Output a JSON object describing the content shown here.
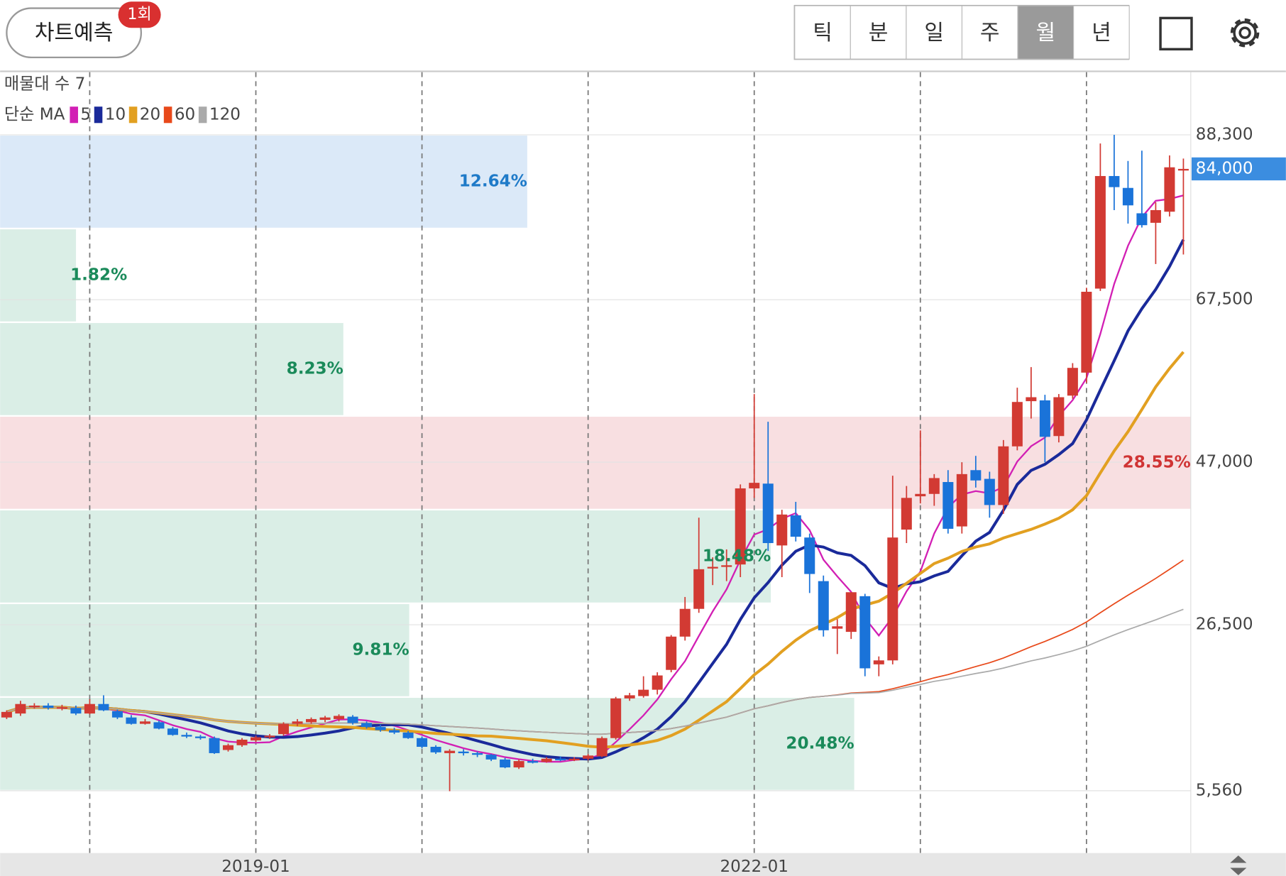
{
  "header": {
    "predict_button": "차트예측",
    "badge": "1회",
    "tabs": [
      "틱",
      "분",
      "일",
      "주",
      "월",
      "년"
    ],
    "active_tab": 4
  },
  "chart_data": {
    "type": "candlestick",
    "volume_profile_label": "매물대 수 7",
    "ma_label": "단순 MA",
    "ma": [
      {
        "period": 5,
        "color": "#d21fb4"
      },
      {
        "period": 10,
        "color": "#1a2a9a"
      },
      {
        "period": 20,
        "color": "#e2a021"
      },
      {
        "period": 60,
        "color": "#e8491a"
      },
      {
        "period": 120,
        "color": "#aaaaaa"
      }
    ],
    "categories": [
      null,
      null,
      null,
      null,
      null,
      null,
      null,
      null,
      null,
      null,
      null,
      null,
      null,
      null,
      null,
      null,
      null,
      null,
      "2019-01",
      null,
      null,
      null,
      null,
      null,
      null,
      null,
      null,
      null,
      null,
      null,
      null,
      null,
      null,
      null,
      null,
      null,
      null,
      null,
      null,
      null,
      null,
      null,
      null,
      null,
      null,
      null,
      null,
      null,
      null,
      null,
      null,
      null,
      null,
      null,
      "2022-01",
      null,
      null,
      null,
      null,
      null,
      null,
      null,
      null,
      null,
      null,
      null,
      null,
      null,
      null,
      null,
      null,
      null,
      null,
      null,
      null,
      null,
      null,
      null,
      null,
      null,
      null,
      null,
      null,
      null,
      null,
      null
    ],
    "open": [
      14800,
      15300,
      16200,
      16300,
      16000,
      16000,
      15300,
      16500,
      15600,
      14800,
      14000,
      14200,
      13400,
      12600,
      12400,
      12200,
      10700,
      11300,
      11900,
      12300,
      12700,
      14000,
      14200,
      14500,
      14600,
      14900,
      14100,
      13600,
      13200,
      12900,
      12200,
      11100,
      10300,
      10500,
      10300,
      10100,
      9500,
      8500,
      9300,
      9200,
      9600,
      9500,
      9600,
      9900,
      12200,
      17200,
      17500,
      18300,
      20800,
      25000,
      28500,
      33600,
      33800,
      34100,
      43700,
      44300,
      36500,
      40300,
      37500,
      32000,
      26000,
      25600,
      30100,
      21500,
      22000,
      38500,
      42700,
      43000,
      44500,
      38900,
      46000,
      44900,
      41600,
      49000,
      54700,
      54800,
      50300,
      55400,
      58300,
      68900,
      83100,
      81600,
      78400,
      77200,
      78600,
      84000
    ],
    "high": [
      15700,
      16900,
      16600,
      16600,
      16400,
      16300,
      17100,
      17600,
      15800,
      15100,
      14600,
      14400,
      13600,
      12900,
      12600,
      12400,
      11500,
      12200,
      12500,
      12700,
      14200,
      14600,
      14800,
      15000,
      15200,
      15100,
      14300,
      13900,
      13500,
      13100,
      12400,
      11300,
      10800,
      10800,
      10500,
      10200,
      9700,
      9500,
      9600,
      9800,
      9900,
      9800,
      10200,
      12400,
      17400,
      17900,
      20000,
      20500,
      25200,
      30000,
      40000,
      35000,
      36000,
      44200,
      55600,
      52100,
      41000,
      42000,
      38000,
      32700,
      27200,
      30600,
      30400,
      22500,
      45300,
      44000,
      51000,
      45500,
      46000,
      47000,
      47800,
      45800,
      49800,
      56400,
      59000,
      55500,
      55600,
      59500,
      69000,
      87200,
      88300,
      85000,
      86300,
      79800,
      85700,
      85300
    ],
    "low": [
      14600,
      15000,
      15900,
      15800,
      15700,
      15100,
      15200,
      15600,
      14600,
      13900,
      13900,
      13300,
      12500,
      12200,
      12000,
      10200,
      10500,
      11100,
      11700,
      12100,
      12500,
      13700,
      14000,
      14200,
      14300,
      13900,
      13400,
      13000,
      12700,
      12100,
      10900,
      10200,
      5500,
      10000,
      9800,
      9300,
      8400,
      8300,
      9000,
      9100,
      9300,
      9300,
      9400,
      9800,
      12000,
      16900,
      17300,
      17700,
      20500,
      24500,
      28000,
      31500,
      32000,
      32500,
      42500,
      35800,
      32500,
      37000,
      30500,
      25000,
      22800,
      24700,
      20000,
      20000,
      21500,
      36800,
      41800,
      41500,
      38000,
      38000,
      43800,
      40000,
      40500,
      48500,
      52500,
      47000,
      49500,
      55000,
      57000,
      68600,
      78800,
      77100,
      76600,
      72000,
      78000,
      73200
    ],
    "close": [
      15500,
      16500,
      16300,
      16000,
      16100,
      15300,
      16500,
      15700,
      14800,
      14000,
      14300,
      13400,
      12600,
      12400,
      12200,
      10300,
      11300,
      12000,
      12300,
      12500,
      14000,
      14300,
      14600,
      14800,
      15000,
      14100,
      13600,
      13200,
      12900,
      12200,
      11100,
      10400,
      10600,
      10300,
      10100,
      9500,
      8500,
      9300,
      9200,
      9600,
      9500,
      9600,
      10000,
      12200,
      17200,
      17600,
      18300,
      20100,
      25000,
      28500,
      33500,
      33800,
      34000,
      43700,
      44400,
      36800,
      40400,
      37600,
      32900,
      25800,
      26300,
      30600,
      21000,
      22000,
      37500,
      42500,
      43000,
      45000,
      38600,
      45500,
      44700,
      41600,
      49000,
      54600,
      55200,
      50200,
      55200,
      58900,
      68500,
      83100,
      81700,
      79400,
      76900,
      78800,
      84200,
      84000
    ],
    "up_color": "#d23a33",
    "down_color": "#1a73d9",
    "ylim": [
      -2300,
      96200
    ],
    "yticks": [
      {
        "value": 5560,
        "label": "5,560"
      },
      {
        "value": 26500,
        "label": "26,500"
      },
      {
        "value": 47000,
        "label": "47,000"
      },
      {
        "value": 67500,
        "label": "67,500"
      },
      {
        "value": 88300,
        "label": "88,300"
      }
    ],
    "grid": true,
    "current_price": {
      "value": 84000,
      "label": "84,000",
      "color": "#3b8de0"
    },
    "volume_profile": {
      "values": [
        12.64,
        1.82,
        8.23,
        28.55,
        18.48,
        9.81,
        20.48
      ],
      "value_labels": [
        "12.64%",
        "1.82%",
        "8.23%",
        "28.55%",
        "18.48%",
        "9.81%",
        "20.48%"
      ],
      "colors": [
        "#dbe9f8",
        "#daeee6",
        "#daeee6",
        "#f8dfe1",
        "#daeee6",
        "#daeee6",
        "#daeee6"
      ],
      "label_colors": [
        "#1e7ac8",
        "#1a8a5a",
        "#1a8a5a",
        "#d03434",
        "#1a8a5a",
        "#1a8a5a",
        "#1a8a5a"
      ]
    }
  }
}
